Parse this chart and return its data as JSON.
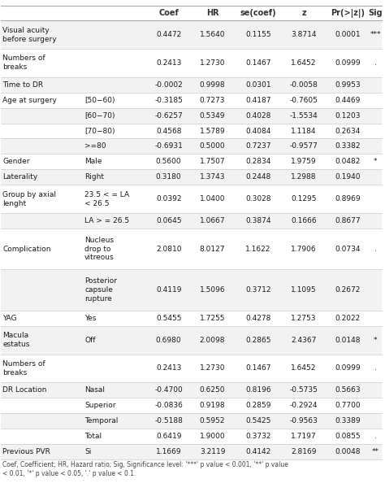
{
  "col_headers": [
    "",
    "",
    "Coef",
    "HR",
    "se(coef)",
    "z",
    "Pr(>|z|)",
    "Sig"
  ],
  "rows": [
    [
      "Visual acuity\nbefore surgery",
      "",
      "0.4472",
      "1.5640",
      "0.1155",
      "3.8714",
      "0.0001",
      "***"
    ],
    [
      "Numbers of\nbreaks",
      "",
      "0.2413",
      "1.2730",
      "0.1467",
      "1.6452",
      "0.0999",
      "."
    ],
    [
      "Time to DR",
      "",
      "-0.0002",
      "0.9998",
      "0.0301",
      "-0.0058",
      "0.9953",
      ""
    ],
    [
      "Age at surgery",
      "[50−60)",
      "-0.3185",
      "0.7273",
      "0.4187",
      "-0.7605",
      "0.4469",
      ""
    ],
    [
      "",
      "[60−70)",
      "-0.6257",
      "0.5349",
      "0.4028",
      "-1.5534",
      "0.1203",
      ""
    ],
    [
      "",
      "[70−80)",
      "0.4568",
      "1.5789",
      "0.4084",
      "1.1184",
      "0.2634",
      ""
    ],
    [
      "",
      ">=80",
      "-0.6931",
      "0.5000",
      "0.7237",
      "-0.9577",
      "0.3382",
      ""
    ],
    [
      "Gender",
      "Male",
      "0.5600",
      "1.7507",
      "0.2834",
      "1.9759",
      "0.0482",
      "*"
    ],
    [
      "Laterality",
      "Right",
      "0.3180",
      "1.3743",
      "0.2448",
      "1.2988",
      "0.1940",
      ""
    ],
    [
      "Group by axial\nlenght",
      "23.5 < = LA\n< 26.5",
      "0.0392",
      "1.0400",
      "0.3028",
      "0.1295",
      "0.8969",
      ""
    ],
    [
      "",
      "LA > = 26.5",
      "0.0645",
      "1.0667",
      "0.3874",
      "0.1666",
      "0.8677",
      ""
    ],
    [
      "Complication",
      "Nucleus\ndrop to\nvitreous",
      "2.0810",
      "8.0127",
      "1.1622",
      "1.7906",
      "0.0734",
      "."
    ],
    [
      "",
      "Posterior\ncapsule\nrupture",
      "0.4119",
      "1.5096",
      "0.3712",
      "1.1095",
      "0.2672",
      ""
    ],
    [
      "YAG",
      "Yes",
      "0.5455",
      "1.7255",
      "0.4278",
      "1.2753",
      "0.2022",
      ""
    ],
    [
      "Macula\nestatus",
      "Off",
      "0.6980",
      "2.0098",
      "0.2865",
      "2.4367",
      "0.0148",
      "*"
    ],
    [
      "Numbers of\nbreaks",
      "",
      "0.2413",
      "1.2730",
      "0.1467",
      "1.6452",
      "0.0999",
      "."
    ],
    [
      "DR Location",
      "Nasal",
      "-0.4700",
      "0.6250",
      "0.8196",
      "-0.5735",
      "0.5663",
      ""
    ],
    [
      "",
      "Superior",
      "-0.0836",
      "0.9198",
      "0.2859",
      "-0.2924",
      "0.7700",
      ""
    ],
    [
      "",
      "Temporal",
      "-0.5188",
      "0.5952",
      "0.5425",
      "-0.9563",
      "0.3389",
      ""
    ],
    [
      "",
      "Total",
      "0.6419",
      "1.9000",
      "0.3732",
      "1.7197",
      "0.0855",
      "."
    ],
    [
      "Previous PVR",
      "Si",
      "1.1669",
      "3.2119",
      "0.4142",
      "2.8169",
      "0.0048",
      "**"
    ]
  ],
  "footer": "Coef, Coefficient; HR, Hazard ratio; Sig, Significance level: '***' p value < 0.001, '**' p value\n< 0.01, '*' p value < 0.05, '.' p value < 0.1.",
  "bg_color": "#ffffff",
  "row_colors": [
    "#f2f2f2",
    "#ffffff"
  ],
  "text_color": "#1a1a1a",
  "grid_color": "#cccccc",
  "header_text_color": "#333333",
  "col_starts": [
    0.0,
    0.215,
    0.385,
    0.495,
    0.615,
    0.735,
    0.855,
    0.965
  ],
  "col_ends": [
    0.215,
    0.385,
    0.495,
    0.615,
    0.735,
    0.855,
    0.965,
    1.0
  ],
  "col_aligns": [
    "left",
    "left",
    "center",
    "center",
    "center",
    "center",
    "center",
    "center"
  ],
  "header_fontsize": 7,
  "data_fontsize": 6.5,
  "footer_fontsize": 5.5
}
